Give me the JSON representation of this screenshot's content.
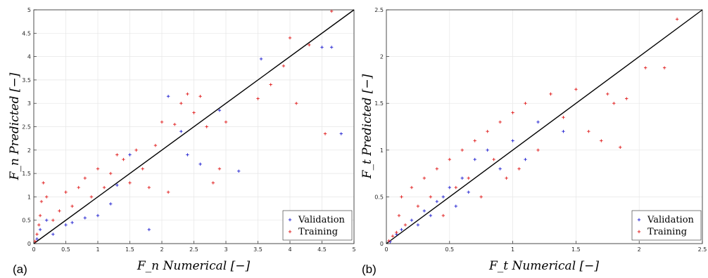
{
  "chart_data": [
    {
      "type": "scatter",
      "panel_label": "(a)",
      "xlabel": "F_n Numerical [−]",
      "ylabel": "F_n Predicted [−]",
      "xlim": [
        0,
        5
      ],
      "ylim": [
        0,
        5
      ],
      "xticks": [
        "0",
        "0.5",
        "1",
        "1.5",
        "2",
        "2.5",
        "3",
        "3.5",
        "4",
        "4.5",
        "5"
      ],
      "yticks": [
        "0",
        "0.5",
        "1",
        "1.5",
        "2",
        "2.5",
        "3",
        "3.5",
        "4",
        "4.5",
        "5"
      ],
      "grid": true,
      "legend_position": "bottom-right",
      "reference_line": {
        "from": [
          0,
          0
        ],
        "to": [
          5,
          5
        ],
        "color": "#000000"
      },
      "series": [
        {
          "name": "Validation",
          "color": "#1f1fd0",
          "points": [
            [
              0.05,
              0.1
            ],
            [
              0.1,
              0.3
            ],
            [
              0.2,
              0.5
            ],
            [
              0.3,
              0.2
            ],
            [
              0.5,
              0.4
            ],
            [
              0.6,
              0.45
            ],
            [
              0.8,
              0.55
            ],
            [
              1.0,
              0.6
            ],
            [
              1.2,
              0.85
            ],
            [
              1.3,
              1.25
            ],
            [
              1.5,
              1.9
            ],
            [
              1.8,
              0.3
            ],
            [
              2.1,
              3.15
            ],
            [
              2.3,
              2.4
            ],
            [
              2.4,
              1.9
            ],
            [
              2.6,
              1.7
            ],
            [
              2.9,
              2.85
            ],
            [
              3.2,
              1.55
            ],
            [
              3.55,
              3.95
            ],
            [
              4.5,
              4.2
            ],
            [
              4.65,
              4.2
            ],
            [
              4.8,
              2.35
            ]
          ]
        },
        {
          "name": "Training",
          "color": "#e01a1a",
          "points": [
            [
              0.02,
              0.05
            ],
            [
              0.05,
              0.2
            ],
            [
              0.08,
              0.4
            ],
            [
              0.1,
              0.6
            ],
            [
              0.12,
              0.9
            ],
            [
              0.15,
              1.3
            ],
            [
              0.2,
              1.0
            ],
            [
              0.3,
              0.5
            ],
            [
              0.4,
              0.7
            ],
            [
              0.5,
              1.1
            ],
            [
              0.6,
              0.8
            ],
            [
              0.7,
              1.2
            ],
            [
              0.8,
              1.4
            ],
            [
              0.9,
              1.0
            ],
            [
              1.0,
              1.6
            ],
            [
              1.1,
              1.2
            ],
            [
              1.2,
              1.5
            ],
            [
              1.3,
              1.9
            ],
            [
              1.4,
              1.8
            ],
            [
              1.5,
              1.3
            ],
            [
              1.6,
              2.0
            ],
            [
              1.7,
              1.6
            ],
            [
              1.8,
              1.2
            ],
            [
              1.9,
              2.1
            ],
            [
              2.0,
              2.6
            ],
            [
              2.1,
              1.1
            ],
            [
              2.2,
              2.55
            ],
            [
              2.3,
              3.0
            ],
            [
              2.4,
              3.2
            ],
            [
              2.5,
              2.8
            ],
            [
              2.6,
              3.15
            ],
            [
              2.7,
              2.5
            ],
            [
              2.8,
              1.3
            ],
            [
              2.9,
              1.6
            ],
            [
              3.0,
              2.6
            ],
            [
              3.5,
              3.1
            ],
            [
              3.7,
              3.4
            ],
            [
              3.9,
              3.8
            ],
            [
              4.0,
              4.4
            ],
            [
              4.1,
              3.0
            ],
            [
              4.3,
              4.25
            ],
            [
              4.55,
              2.35
            ],
            [
              4.65,
              4.97
            ]
          ]
        }
      ]
    },
    {
      "type": "scatter",
      "panel_label": "(b)",
      "xlabel": "F_t Numerical [−]",
      "ylabel": "F_t Predicted [−]",
      "xlim": [
        0,
        2.5
      ],
      "ylim": [
        0,
        2.5
      ],
      "xticks": [
        "0",
        "0.5",
        "1",
        "1.5",
        "2",
        "2.5"
      ],
      "yticks": [
        "0",
        "0.5",
        "1",
        "1.5",
        "2",
        "2.5"
      ],
      "grid": true,
      "legend_position": "bottom-right",
      "reference_line": {
        "from": [
          0,
          0
        ],
        "to": [
          2.5,
          2.5
        ],
        "color": "#000000"
      },
      "series": [
        {
          "name": "Validation",
          "color": "#1f1fd0",
          "points": [
            [
              0.03,
              0.02
            ],
            [
              0.08,
              0.1
            ],
            [
              0.12,
              0.15
            ],
            [
              0.2,
              0.25
            ],
            [
              0.25,
              0.2
            ],
            [
              0.3,
              0.35
            ],
            [
              0.35,
              0.3
            ],
            [
              0.4,
              0.45
            ],
            [
              0.45,
              0.5
            ],
            [
              0.5,
              0.6
            ],
            [
              0.55,
              0.4
            ],
            [
              0.6,
              0.7
            ],
            [
              0.65,
              0.55
            ],
            [
              0.7,
              0.9
            ],
            [
              0.8,
              1.0
            ],
            [
              0.9,
              0.8
            ],
            [
              1.0,
              1.1
            ],
            [
              1.1,
              0.9
            ],
            [
              1.2,
              1.3
            ],
            [
              1.4,
              1.2
            ]
          ]
        },
        {
          "name": "Training",
          "color": "#e01a1a",
          "points": [
            [
              0.02,
              0.03
            ],
            [
              0.05,
              0.08
            ],
            [
              0.08,
              0.12
            ],
            [
              0.1,
              0.3
            ],
            [
              0.12,
              0.5
            ],
            [
              0.15,
              0.2
            ],
            [
              0.2,
              0.6
            ],
            [
              0.25,
              0.4
            ],
            [
              0.3,
              0.7
            ],
            [
              0.35,
              0.5
            ],
            [
              0.4,
              0.8
            ],
            [
              0.45,
              0.3
            ],
            [
              0.5,
              0.9
            ],
            [
              0.55,
              0.6
            ],
            [
              0.6,
              1.0
            ],
            [
              0.65,
              0.7
            ],
            [
              0.7,
              1.1
            ],
            [
              0.75,
              0.5
            ],
            [
              0.8,
              1.2
            ],
            [
              0.85,
              0.9
            ],
            [
              0.9,
              1.3
            ],
            [
              0.95,
              0.7
            ],
            [
              1.0,
              1.4
            ],
            [
              1.05,
              0.8
            ],
            [
              1.1,
              1.5
            ],
            [
              1.2,
              1.0
            ],
            [
              1.3,
              1.6
            ],
            [
              1.4,
              1.35
            ],
            [
              1.5,
              1.65
            ],
            [
              1.6,
              1.2
            ],
            [
              1.7,
              1.1
            ],
            [
              1.75,
              1.6
            ],
            [
              1.8,
              1.5
            ],
            [
              1.85,
              1.03
            ],
            [
              1.9,
              1.55
            ],
            [
              2.05,
              1.88
            ],
            [
              2.2,
              1.88
            ],
            [
              2.3,
              2.4
            ]
          ]
        }
      ]
    }
  ]
}
